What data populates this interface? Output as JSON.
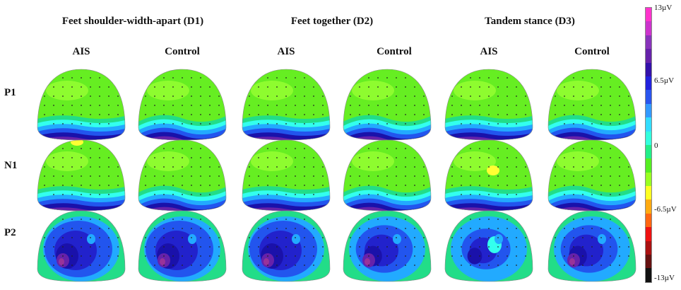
{
  "conditions": [
    {
      "label": "Feet shoulder-width-apart (D1)"
    },
    {
      "label": "Feet together (D2)"
    },
    {
      "label": "Tandem stance (D3)"
    }
  ],
  "groups": [
    "AIS",
    "Control",
    "AIS",
    "Control",
    "AIS",
    "Control"
  ],
  "components": [
    "P1",
    "N1",
    "P2"
  ],
  "colorbar": {
    "ticks": [
      "13µV",
      "6.5µV",
      "0",
      "-6.5µV",
      "-13µV"
    ],
    "colors": [
      "#ff33cc",
      "#cc33cc",
      "#8833bb",
      "#6622aa",
      "#3311aa",
      "#2222dd",
      "#2a55ee",
      "#3399ff",
      "#33ddff",
      "#33ffdd",
      "#22ee88",
      "#55ee22",
      "#99ff22",
      "#ffff22",
      "#ffaa11",
      "#ff6611",
      "#ee1111",
      "#aa1111",
      "#661111",
      "#111111"
    ]
  },
  "palette": {
    "green": "#66ee22",
    "lightgreen": "#99ff33",
    "teal": "#22dd88",
    "cyan": "#33ffee",
    "sky": "#22aaff",
    "blue": "#2255ee",
    "navy": "#2222cc",
    "deepblue": "#1a11aa",
    "purple": "#6622aa",
    "magenta": "#993399",
    "yellow": "#ffff33"
  }
}
